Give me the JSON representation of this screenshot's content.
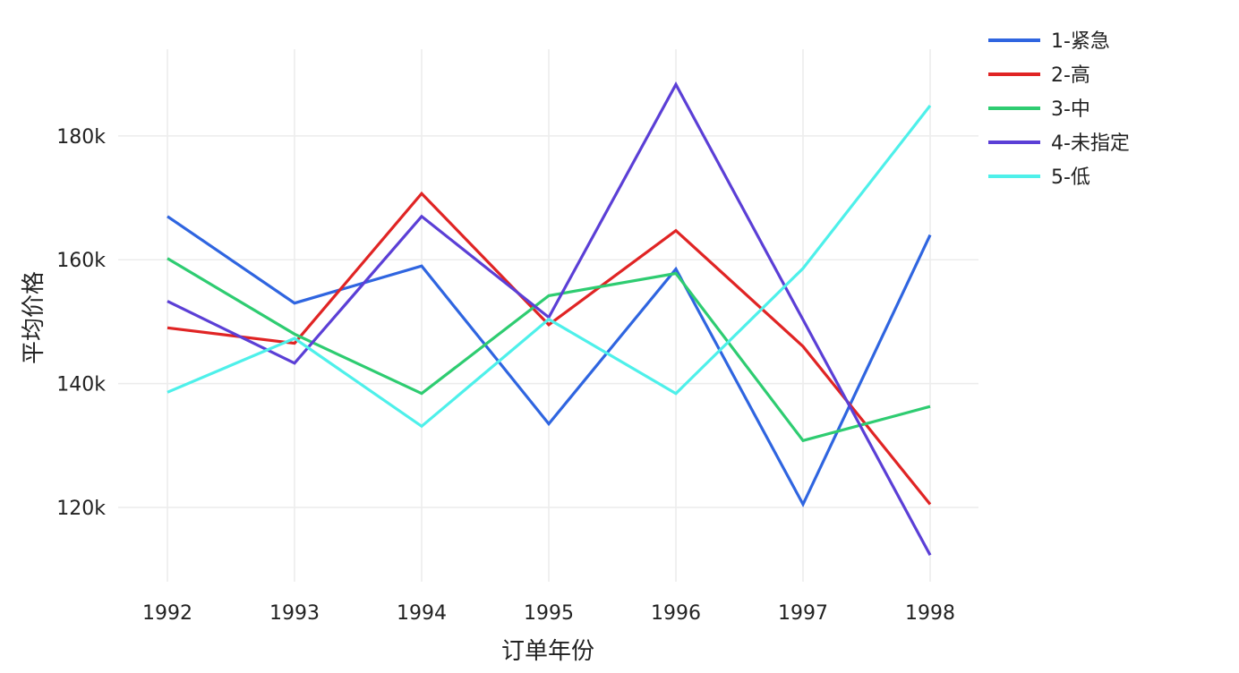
{
  "chart_data": {
    "type": "line",
    "title": "",
    "xlabel": "订单年份",
    "ylabel": "平均价格",
    "x": [
      "1992",
      "1993",
      "1994",
      "1995",
      "1996",
      "1997",
      "1998"
    ],
    "yticks": [
      120000,
      140000,
      160000,
      180000
    ],
    "ytick_labels": [
      "120k",
      "140k",
      "160k",
      "180k"
    ],
    "ylim": [
      108000,
      194000
    ],
    "grid": true,
    "legend_position": "top-right",
    "series": [
      {
        "name": "1-紧急",
        "color": "#2f65e0",
        "values": [
          167000,
          153000,
          159000,
          133500,
          158500,
          120500,
          164000
        ]
      },
      {
        "name": "2-高",
        "color": "#e02424",
        "values": [
          149000,
          146500,
          170700,
          149500,
          164700,
          146000,
          120500
        ]
      },
      {
        "name": "3-中",
        "color": "#2ecc71",
        "values": [
          160200,
          148000,
          138400,
          154200,
          157800,
          130800,
          136300
        ]
      },
      {
        "name": "4-未指定",
        "color": "#5b3fd6",
        "values": [
          153300,
          143300,
          167000,
          150700,
          188300,
          150300,
          112300
        ]
      },
      {
        "name": "5-低",
        "color": "#4ef0ea",
        "values": [
          138600,
          147300,
          133100,
          150400,
          138400,
          158600,
          184900
        ]
      }
    ]
  }
}
